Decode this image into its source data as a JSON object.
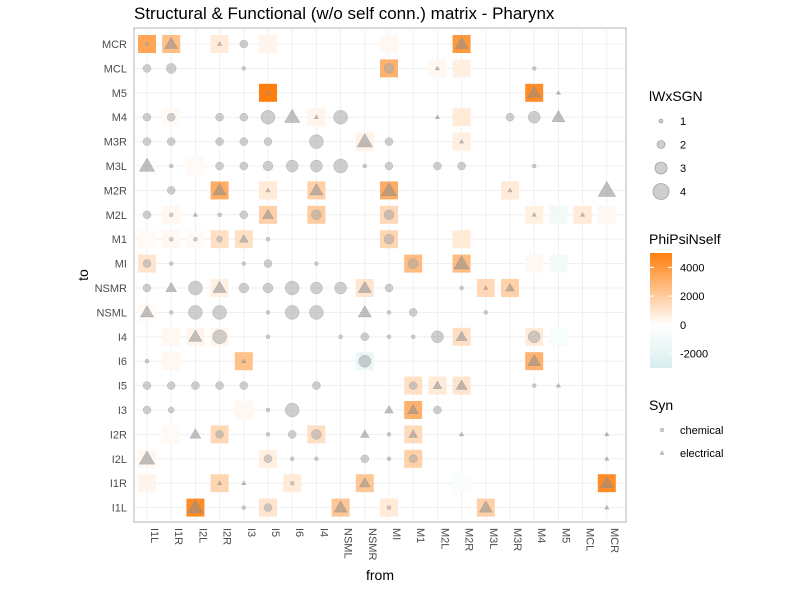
{
  "chart_data": {
    "type": "heatmap",
    "title": "Structural & Functional (w/o self conn.) matrix - Pharynx",
    "xlabel": "from",
    "ylabel": "to",
    "x_categories": [
      "I1L",
      "I1R",
      "I2L",
      "I2R",
      "I3",
      "I5",
      "I6",
      "I4",
      "NSML",
      "NSMR",
      "MI",
      "M1",
      "M2L",
      "M2R",
      "M3L",
      "M3R",
      "M4",
      "M5",
      "MCL",
      "MCR"
    ],
    "y_categories": [
      "MCR",
      "MCL",
      "M5",
      "M4",
      "M3R",
      "M3L",
      "M2R",
      "M2L",
      "M1",
      "MI",
      "NSMR",
      "NSML",
      "I4",
      "I6",
      "I5",
      "I3",
      "I2R",
      "I2L",
      "I1R",
      "I1L"
    ],
    "grid": true,
    "legends": {
      "size": {
        "title": "lWxSGN",
        "labels": [
          "1",
          "2",
          "3",
          "4"
        ],
        "values": [
          1,
          2,
          3,
          4
        ]
      },
      "fill": {
        "title": "PhiPsiNself",
        "ticks": [
          "4000",
          "2000",
          "0",
          "-2000"
        ],
        "tick_values": [
          4000,
          2000,
          0,
          -2000
        ],
        "range": [
          -3000,
          5000
        ],
        "colors": {
          "high": "#ff7f0e",
          "mid": "#ffffff",
          "low": "#d7eeee"
        }
      },
      "shape": {
        "title": "Syn",
        "labels": [
          "chemical",
          "electrical"
        ],
        "shapes": [
          "circle",
          "triangle"
        ]
      }
    },
    "tiles": [
      [
        "MCR",
        "I1L",
        3500
      ],
      [
        "MCR",
        "I1R",
        2500
      ],
      [
        "MCR",
        "I2R",
        800
      ],
      [
        "MCR",
        "I5",
        400
      ],
      [
        "MCR",
        "M2R",
        4000
      ],
      [
        "MCR",
        "MI",
        300
      ],
      [
        "MCL",
        "MI",
        3000
      ],
      [
        "MCL",
        "M2R",
        600
      ],
      [
        "MCL",
        "M2L",
        300
      ],
      [
        "M5",
        "I5",
        5000
      ],
      [
        "M5",
        "M4",
        4500
      ],
      [
        "M4",
        "I4",
        400
      ],
      [
        "M4",
        "M2R",
        800
      ],
      [
        "M4",
        "I1R",
        200
      ],
      [
        "M3R",
        "M2R",
        600
      ],
      [
        "M3R",
        "NSMR",
        500
      ],
      [
        "M3L",
        "I2L",
        200
      ],
      [
        "M2R",
        "I2R",
        3200
      ],
      [
        "M2R",
        "I5",
        800
      ],
      [
        "M2R",
        "I4",
        1800
      ],
      [
        "M2R",
        "MI",
        3200
      ],
      [
        "M2R",
        "M3R",
        800
      ],
      [
        "M2L",
        "I5",
        1800
      ],
      [
        "M2L",
        "I4",
        2000
      ],
      [
        "M2L",
        "MI",
        1500
      ],
      [
        "M2L",
        "I1R",
        300
      ],
      [
        "M2L",
        "M4",
        600
      ],
      [
        "M2L",
        "M5",
        -1000
      ],
      [
        "M2L",
        "MCL",
        800
      ],
      [
        "M2L",
        "MCR",
        300
      ],
      [
        "M1",
        "I2R",
        1200
      ],
      [
        "M1",
        "I3",
        1200
      ],
      [
        "M1",
        "MI",
        1600
      ],
      [
        "M1",
        "M2R",
        800
      ],
      [
        "M1",
        "I1L",
        200
      ],
      [
        "M1",
        "I1R",
        300
      ],
      [
        "M1",
        "I2L",
        200
      ],
      [
        "MI",
        "I1L",
        1000
      ],
      [
        "MI",
        "M1",
        2600
      ],
      [
        "MI",
        "M2R",
        2600
      ],
      [
        "MI",
        "M4",
        300
      ],
      [
        "MI",
        "M5",
        -800
      ],
      [
        "NSMR",
        "I2R",
        600
      ],
      [
        "NSMR",
        "NSMR",
        1000
      ],
      [
        "NSMR",
        "M3L",
        1500
      ],
      [
        "NSMR",
        "M3R",
        1800
      ],
      [
        "NSML",
        "I1L",
        200
      ],
      [
        "I4",
        "I2L",
        400
      ],
      [
        "I4",
        "I2R",
        400
      ],
      [
        "I4",
        "I1R",
        300
      ],
      [
        "I4",
        "M2R",
        1200
      ],
      [
        "I4",
        "M4",
        800
      ],
      [
        "I4",
        "M5",
        -600
      ],
      [
        "I6",
        "I3",
        2400
      ],
      [
        "I6",
        "NSMR",
        -1500
      ],
      [
        "I6",
        "M4",
        3000
      ],
      [
        "I6",
        "I1R",
        300
      ],
      [
        "I5",
        "M1",
        1200
      ],
      [
        "I5",
        "M2L",
        800
      ],
      [
        "I5",
        "M2R",
        1000
      ],
      [
        "I3",
        "M1",
        3000
      ],
      [
        "I3",
        "I3",
        300
      ],
      [
        "I2R",
        "I2R",
        1500
      ],
      [
        "I2R",
        "I4",
        1200
      ],
      [
        "I2R",
        "M1",
        1400
      ],
      [
        "I2R",
        "I1R",
        200
      ],
      [
        "I2L",
        "M1",
        1800
      ],
      [
        "I2L",
        "I5",
        600
      ],
      [
        "I2L",
        "I1L",
        300
      ],
      [
        "I1R",
        "I1L",
        400
      ],
      [
        "I1R",
        "I2R",
        1600
      ],
      [
        "I1R",
        "I6",
        800
      ],
      [
        "I1R",
        "NSMR",
        2200
      ],
      [
        "I1R",
        "MCR",
        4500
      ],
      [
        "I1R",
        "M2R",
        -400
      ],
      [
        "I1L",
        "I2L",
        4500
      ],
      [
        "I1L",
        "I5",
        1000
      ],
      [
        "I1L",
        "NSML",
        2200
      ],
      [
        "I1L",
        "MI",
        800
      ],
      [
        "I1L",
        "M3L",
        1800
      ]
    ],
    "points": [
      [
        "MCR",
        "I1L",
        "chemical",
        1
      ],
      [
        "MCR",
        "I1R",
        "electrical",
        3
      ],
      [
        "MCR",
        "I2R",
        "electrical",
        1
      ],
      [
        "MCR",
        "I3",
        "chemical",
        2
      ],
      [
        "MCR",
        "M2R",
        "electrical",
        3
      ],
      [
        "MCL",
        "I1L",
        "chemical",
        2
      ],
      [
        "MCL",
        "I1R",
        "chemical",
        2.5
      ],
      [
        "MCL",
        "I3",
        "chemical",
        1
      ],
      [
        "MCL",
        "MI",
        "chemical",
        2.5
      ],
      [
        "MCL",
        "M2L",
        "electrical",
        1
      ],
      [
        "MCL",
        "M4",
        "chemical",
        1
      ],
      [
        "M5",
        "I5",
        "electrical",
        1
      ],
      [
        "M5",
        "M4",
        "electrical",
        3
      ],
      [
        "M5",
        "M5",
        "electrical",
        1
      ],
      [
        "M4",
        "I1L",
        "chemical",
        2
      ],
      [
        "M4",
        "I1R",
        "chemical",
        2
      ],
      [
        "M4",
        "I2R",
        "chemical",
        2
      ],
      [
        "M4",
        "I3",
        "chemical",
        2
      ],
      [
        "M4",
        "I5",
        "chemical",
        3.5
      ],
      [
        "M4",
        "I6",
        "electrical",
        3.5
      ],
      [
        "M4",
        "I4",
        "electrical",
        1
      ],
      [
        "M4",
        "NSML",
        "chemical",
        3.5
      ],
      [
        "M4",
        "M2L",
        "electrical",
        1
      ],
      [
        "M4",
        "M3R",
        "chemical",
        2
      ],
      [
        "M4",
        "M4",
        "chemical",
        3
      ],
      [
        "M4",
        "M5",
        "electrical",
        3
      ],
      [
        "M3R",
        "I1L",
        "chemical",
        2
      ],
      [
        "M3R",
        "I1R",
        "chemical",
        2
      ],
      [
        "M3R",
        "I2R",
        "chemical",
        2
      ],
      [
        "M3R",
        "I3",
        "chemical",
        2
      ],
      [
        "M3R",
        "I5",
        "chemical",
        2
      ],
      [
        "M3R",
        "I4",
        "chemical",
        3.5
      ],
      [
        "M3R",
        "NSMR",
        "electrical",
        3.5
      ],
      [
        "M3R",
        "MI",
        "chemical",
        2
      ],
      [
        "M3R",
        "M2R",
        "electrical",
        1
      ],
      [
        "M3L",
        "I1L",
        "electrical",
        3.5
      ],
      [
        "M3L",
        "I1R",
        "chemical",
        1
      ],
      [
        "M3L",
        "I2R",
        "chemical",
        2
      ],
      [
        "M3L",
        "I3",
        "chemical",
        2
      ],
      [
        "M3L",
        "I5",
        "chemical",
        2.5
      ],
      [
        "M3L",
        "I6",
        "chemical",
        3
      ],
      [
        "M3L",
        "I4",
        "chemical",
        3
      ],
      [
        "M3L",
        "NSML",
        "chemical",
        3.5
      ],
      [
        "M3L",
        "NSMR",
        "chemical",
        1
      ],
      [
        "M3L",
        "MI",
        "chemical",
        2
      ],
      [
        "M3L",
        "M2L",
        "chemical",
        2
      ],
      [
        "M3L",
        "M2R",
        "chemical",
        2
      ],
      [
        "M3L",
        "M4",
        "chemical",
        1
      ],
      [
        "M2R",
        "I1R",
        "chemical",
        2
      ],
      [
        "M2R",
        "I2R",
        "electrical",
        3
      ],
      [
        "M2R",
        "I5",
        "electrical",
        1
      ],
      [
        "M2R",
        "I4",
        "electrical",
        3
      ],
      [
        "M2R",
        "MI",
        "electrical",
        3.5
      ],
      [
        "M2R",
        "M3R",
        "electrical",
        1
      ],
      [
        "M2R",
        "MCR",
        "electrical",
        4
      ],
      [
        "M2L",
        "I1L",
        "chemical",
        2
      ],
      [
        "M2L",
        "I1R",
        "chemical",
        1
      ],
      [
        "M2L",
        "I2L",
        "electrical",
        1
      ],
      [
        "M2L",
        "I2R",
        "chemical",
        1
      ],
      [
        "M2L",
        "I3",
        "chemical",
        2
      ],
      [
        "M2L",
        "I5",
        "electrical",
        2.5
      ],
      [
        "M2L",
        "I4",
        "chemical",
        2.5
      ],
      [
        "M2L",
        "MI",
        "chemical",
        2.5
      ],
      [
        "M2L",
        "M4",
        "electrical",
        1
      ],
      [
        "M2L",
        "MCL",
        "electrical",
        1
      ],
      [
        "M1",
        "I2L",
        "chemical",
        1
      ],
      [
        "M1",
        "I2R",
        "chemical",
        1.5
      ],
      [
        "M1",
        "I3",
        "electrical",
        2
      ],
      [
        "M1",
        "I5",
        "chemical",
        1
      ],
      [
        "M1",
        "MI",
        "chemical",
        2.5
      ],
      [
        "M1",
        "I1R",
        "chemical",
        1
      ],
      [
        "MI",
        "I1L",
        "chemical",
        2
      ],
      [
        "MI",
        "I1R",
        "chemical",
        1
      ],
      [
        "MI",
        "I3",
        "chemical",
        1
      ],
      [
        "MI",
        "I5",
        "chemical",
        2
      ],
      [
        "MI",
        "I4",
        "chemical",
        1
      ],
      [
        "MI",
        "M1",
        "chemical",
        2.5
      ],
      [
        "MI",
        "M2R",
        "electrical",
        3.5
      ],
      [
        "NSMR",
        "I1L",
        "chemical",
        2
      ],
      [
        "NSMR",
        "I1R",
        "electrical",
        2.5
      ],
      [
        "NSMR",
        "I2L",
        "chemical",
        3.5
      ],
      [
        "NSMR",
        "I2R",
        "electrical",
        3
      ],
      [
        "NSMR",
        "I3",
        "chemical",
        2.5
      ],
      [
        "NSMR",
        "I5",
        "chemical",
        2.5
      ],
      [
        "NSMR",
        "I6",
        "chemical",
        3.5
      ],
      [
        "NSMR",
        "I4",
        "chemical",
        3
      ],
      [
        "NSMR",
        "NSML",
        "chemical",
        3
      ],
      [
        "NSMR",
        "NSMR",
        "electrical",
        3
      ],
      [
        "NSMR",
        "MI",
        "chemical",
        2
      ],
      [
        "NSMR",
        "M2R",
        "chemical",
        1
      ],
      [
        "NSMR",
        "M3L",
        "electrical",
        1
      ],
      [
        "NSMR",
        "M3R",
        "electrical",
        2
      ],
      [
        "NSML",
        "I1L",
        "electrical",
        3
      ],
      [
        "NSML",
        "I1R",
        "chemical",
        1
      ],
      [
        "NSML",
        "I2L",
        "chemical",
        3.5
      ],
      [
        "NSML",
        "I2R",
        "chemical",
        3.5
      ],
      [
        "NSML",
        "I5",
        "chemical",
        1
      ],
      [
        "NSML",
        "I6",
        "chemical",
        3.5
      ],
      [
        "NSML",
        "I4",
        "chemical",
        3.5
      ],
      [
        "NSML",
        "NSMR",
        "electrical",
        3
      ],
      [
        "NSML",
        "MI",
        "chemical",
        1
      ],
      [
        "NSML",
        "M1",
        "chemical",
        2
      ],
      [
        "NSML",
        "M3L",
        "chemical",
        1
      ],
      [
        "I4",
        "I2L",
        "electrical",
        3
      ],
      [
        "I4",
        "I2R",
        "chemical",
        3.5
      ],
      [
        "I4",
        "I5",
        "chemical",
        1
      ],
      [
        "I4",
        "NSML",
        "chemical",
        1
      ],
      [
        "I4",
        "NSMR",
        "chemical",
        2
      ],
      [
        "I4",
        "MI",
        "chemical",
        1
      ],
      [
        "I4",
        "M1",
        "chemical",
        1
      ],
      [
        "I4",
        "M2L",
        "chemical",
        3
      ],
      [
        "I4",
        "M2R",
        "electrical",
        2.5
      ],
      [
        "I4",
        "M4",
        "chemical",
        3
      ],
      [
        "I6",
        "I1L",
        "chemical",
        1
      ],
      [
        "I6",
        "I3",
        "electrical",
        1
      ],
      [
        "I6",
        "NSMR",
        "chemical",
        3
      ],
      [
        "I6",
        "M4",
        "electrical",
        3
      ],
      [
        "I5",
        "I1L",
        "chemical",
        2
      ],
      [
        "I5",
        "I1R",
        "chemical",
        2
      ],
      [
        "I5",
        "I2L",
        "chemical",
        2
      ],
      [
        "I5",
        "I2R",
        "chemical",
        2
      ],
      [
        "I5",
        "I3",
        "chemical",
        2
      ],
      [
        "I5",
        "I4",
        "chemical",
        2
      ],
      [
        "I5",
        "M1",
        "chemical",
        2
      ],
      [
        "I5",
        "M2L",
        "electrical",
        2
      ],
      [
        "I5",
        "M2R",
        "electrical",
        2.5
      ],
      [
        "I5",
        "M4",
        "chemical",
        1
      ],
      [
        "I5",
        "M5",
        "electrical",
        1
      ],
      [
        "I3",
        "I1L",
        "chemical",
        2
      ],
      [
        "I3",
        "I1R",
        "chemical",
        1.5
      ],
      [
        "I3",
        "I5",
        "chemical",
        1
      ],
      [
        "I3",
        "I6",
        "chemical",
        3.5
      ],
      [
        "I3",
        "MI",
        "electrical",
        2
      ],
      [
        "I3",
        "M1",
        "electrical",
        2.5
      ],
      [
        "I3",
        "M2L",
        "chemical",
        2
      ],
      [
        "I2R",
        "I2L",
        "electrical",
        2.5
      ],
      [
        "I2R",
        "I2R",
        "chemical",
        2
      ],
      [
        "I2R",
        "I5",
        "chemical",
        1
      ],
      [
        "I2R",
        "I6",
        "chemical",
        2
      ],
      [
        "I2R",
        "I4",
        "chemical",
        2.5
      ],
      [
        "I2R",
        "NSMR",
        "electrical",
        2
      ],
      [
        "I2R",
        "MI",
        "chemical",
        1
      ],
      [
        "I2R",
        "M1",
        "electrical",
        2
      ],
      [
        "I2R",
        "M2R",
        "electrical",
        1
      ],
      [
        "I2R",
        "MCR",
        "electrical",
        1
      ],
      [
        "I2L",
        "I1L",
        "electrical",
        3.5
      ],
      [
        "I2L",
        "I5",
        "chemical",
        2
      ],
      [
        "I2L",
        "I6",
        "chemical",
        1
      ],
      [
        "I2L",
        "I4",
        "chemical",
        1
      ],
      [
        "I2L",
        "NSMR",
        "chemical",
        2
      ],
      [
        "I2L",
        "MI",
        "chemical",
        1
      ],
      [
        "I2L",
        "M1",
        "chemical",
        2
      ],
      [
        "I2L",
        "MCR",
        "electrical",
        1
      ],
      [
        "I1R",
        "I2R",
        "electrical",
        1
      ],
      [
        "I1R",
        "I3",
        "electrical",
        1
      ],
      [
        "I1R",
        "I6",
        "chemical",
        1
      ],
      [
        "I1R",
        "NSMR",
        "electrical",
        2.5
      ],
      [
        "I1R",
        "MCR",
        "electrical",
        3
      ],
      [
        "I1L",
        "I2L",
        "electrical",
        3.5
      ],
      [
        "I1L",
        "I3",
        "chemical",
        1
      ],
      [
        "I1L",
        "I5",
        "chemical",
        2
      ],
      [
        "I1L",
        "NSML",
        "electrical",
        3
      ],
      [
        "I1L",
        "MI",
        "chemical",
        1
      ],
      [
        "I1L",
        "M3L",
        "electrical",
        3
      ],
      [
        "I1L",
        "MCR",
        "electrical",
        1
      ]
    ]
  }
}
